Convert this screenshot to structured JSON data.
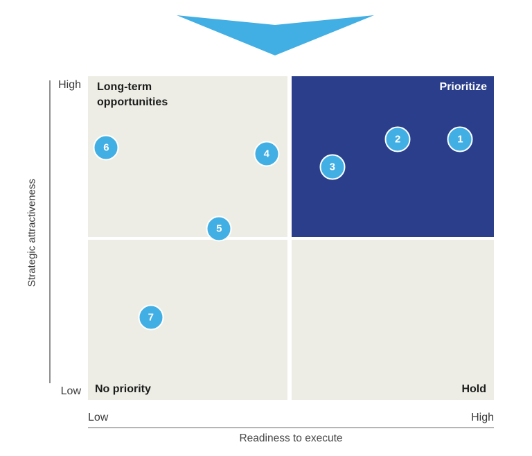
{
  "colors": {
    "accent-blue": "#41AEE4",
    "navy": "#2A3E8C",
    "quadrant-bg": "#EDEDE5",
    "label-dark": "#1C1C1C",
    "axis-text": "#3A3A3A",
    "muted-text": "#454545",
    "y-axis-line": "#8F8F8F",
    "x-axis-line": "#B5B5B5",
    "bubble-text": "#FFFFFF",
    "bubble-ring": "#FFFFFF"
  },
  "header": {
    "arrow_icon": "chevron-down"
  },
  "chart_data": {
    "type": "scatter",
    "subtype": "2x2 priority matrix",
    "title": "",
    "xlabel": "Readiness to execute",
    "ylabel": "Strategic attractiveness",
    "x_axis_ticks": [
      "Low",
      "High"
    ],
    "y_axis_ticks": [
      "High",
      "Low"
    ],
    "xlim": [
      0,
      1
    ],
    "ylim": [
      0,
      1
    ],
    "grid": false,
    "legend": "none",
    "quadrants": [
      {
        "position": "top-left",
        "label": "Long-term opportunities",
        "highlighted": false
      },
      {
        "position": "top-right",
        "label": "Prioritize",
        "highlighted": true
      },
      {
        "position": "bottom-left",
        "label": "No priority",
        "highlighted": false
      },
      {
        "position": "bottom-right",
        "label": "Hold",
        "highlighted": false
      }
    ],
    "points": [
      {
        "label": "1",
        "x": 0.917,
        "y": 0.805
      },
      {
        "label": "2",
        "x": 0.763,
        "y": 0.805
      },
      {
        "label": "3",
        "x": 0.602,
        "y": 0.72
      },
      {
        "label": "4",
        "x": 0.44,
        "y": 0.76
      },
      {
        "label": "5",
        "x": 0.323,
        "y": 0.528
      },
      {
        "label": "6",
        "x": 0.045,
        "y": 0.78
      },
      {
        "label": "7",
        "x": 0.155,
        "y": 0.255
      }
    ]
  }
}
